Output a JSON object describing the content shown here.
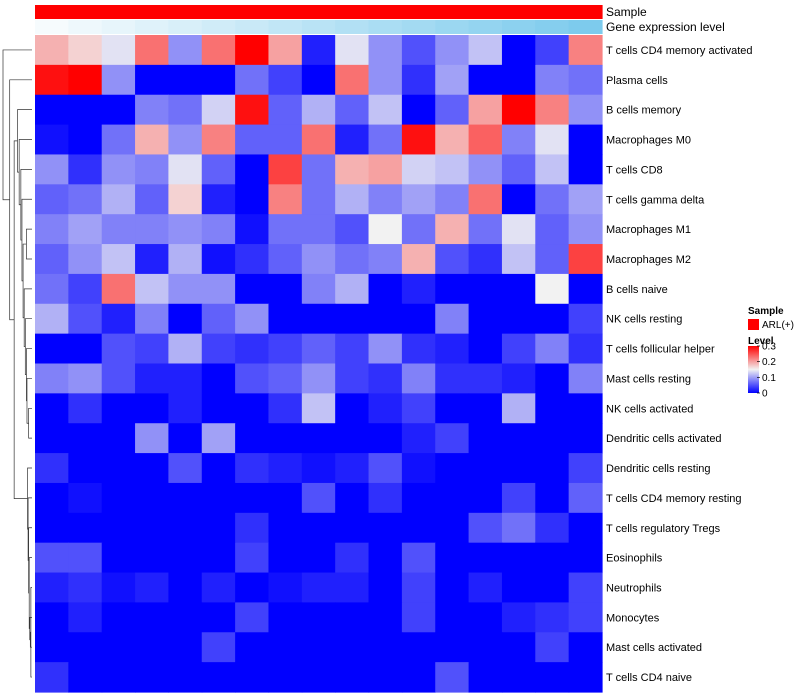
{
  "chart_data": {
    "type": "heatmap",
    "annotation_rows": [
      {
        "label": "Sample",
        "colors": [
          "#ff0000",
          "#ff0000",
          "#ff0000",
          "#ff0000",
          "#ff0000",
          "#ff0000",
          "#ff0000",
          "#ff0000",
          "#ff0000",
          "#ff0000",
          "#ff0000",
          "#ff0000",
          "#ff0000",
          "#ff0000",
          "#ff0000",
          "#ff0000",
          "#ff0000"
        ]
      },
      {
        "label": "Gene expression level",
        "colors": [
          "#f6fbfd",
          "#eef8fc",
          "#e7f5fb",
          "#dff2fa",
          "#d8eff9",
          "#d0ecf8",
          "#c9e9f7",
          "#c1e6f6",
          "#b9e3f5",
          "#b2e0f4",
          "#aaddf3",
          "#a3daf2",
          "#9bd7f1",
          "#94d4f0",
          "#8cd1ef",
          "#85ceee",
          "#7dcbed"
        ]
      }
    ],
    "rows": [
      "T cells CD4 memory activated",
      "Plasma cells",
      "B cells memory",
      "Macrophages M0",
      "T cells CD8",
      "T cells gamma delta",
      "Macrophages M1",
      "Macrophages M2",
      "B cells naive",
      "NK cells resting",
      "T cells follicular helper",
      "Mast cells resting",
      "NK cells activated",
      "Dendritic cells activated",
      "Dendritic cells resting",
      "T cells CD4 memory resting",
      "T cells regulatory  Tregs",
      "Eosinophils",
      "Neutrophils",
      "Monocytes",
      "Mast cells activated",
      "T cells CD4 naive"
    ],
    "values": [
      [
        0.19,
        0.17,
        0.14,
        0.23,
        0.09,
        0.23,
        0.3,
        0.2,
        0.02,
        0.14,
        0.09,
        0.05,
        0.09,
        0.12,
        0.0,
        0.04,
        0.22
      ],
      [
        0.29,
        0.3,
        0.09,
        0.0,
        0.0,
        0.0,
        0.07,
        0.04,
        0.0,
        0.23,
        0.09,
        0.03,
        0.1,
        0.0,
        0.0,
        0.08,
        0.07
      ],
      [
        0.0,
        0.0,
        0.0,
        0.08,
        0.07,
        0.13,
        0.29,
        0.06,
        0.11,
        0.06,
        0.12,
        0.0,
        0.06,
        0.2,
        0.3,
        0.22,
        0.09
      ],
      [
        0.01,
        0.0,
        0.07,
        0.19,
        0.09,
        0.22,
        0.06,
        0.06,
        0.23,
        0.02,
        0.07,
        0.29,
        0.19,
        0.24,
        0.08,
        0.14,
        0.0
      ],
      [
        0.09,
        0.03,
        0.09,
        0.08,
        0.14,
        0.06,
        0.0,
        0.26,
        0.07,
        0.19,
        0.2,
        0.13,
        0.12,
        0.09,
        0.06,
        0.12,
        0.0
      ],
      [
        0.06,
        0.07,
        0.11,
        0.06,
        0.17,
        0.02,
        0.0,
        0.22,
        0.07,
        0.11,
        0.08,
        0.1,
        0.08,
        0.23,
        0.0,
        0.07,
        0.1
      ],
      [
        0.08,
        0.1,
        0.08,
        0.08,
        0.09,
        0.08,
        0.01,
        0.07,
        0.07,
        0.05,
        0.15,
        0.07,
        0.19,
        0.07,
        0.14,
        0.06,
        0.09
      ],
      [
        0.06,
        0.09,
        0.12,
        0.02,
        0.11,
        0.01,
        0.03,
        0.06,
        0.09,
        0.07,
        0.08,
        0.19,
        0.05,
        0.03,
        0.12,
        0.06,
        0.26
      ],
      [
        0.07,
        0.04,
        0.23,
        0.12,
        0.09,
        0.09,
        0.0,
        0.0,
        0.08,
        0.11,
        0.0,
        0.02,
        0.0,
        0.0,
        0.0,
        0.15,
        0.0
      ],
      [
        0.11,
        0.05,
        0.02,
        0.08,
        0.0,
        0.06,
        0.09,
        0.0,
        0.0,
        0.0,
        0.0,
        0.0,
        0.08,
        0.0,
        0.0,
        0.0,
        0.04
      ],
      [
        0.0,
        0.0,
        0.05,
        0.04,
        0.11,
        0.04,
        0.03,
        0.04,
        0.06,
        0.04,
        0.09,
        0.03,
        0.02,
        0.0,
        0.04,
        0.08,
        0.03
      ],
      [
        0.08,
        0.09,
        0.05,
        0.02,
        0.02,
        0.0,
        0.05,
        0.06,
        0.09,
        0.04,
        0.03,
        0.08,
        0.03,
        0.03,
        0.02,
        0.0,
        0.08
      ],
      [
        0.0,
        0.03,
        0.0,
        0.0,
        0.02,
        0.0,
        0.0,
        0.03,
        0.12,
        0.0,
        0.02,
        0.04,
        0.0,
        0.0,
        0.11,
        0.0,
        0.0
      ],
      [
        0.0,
        0.0,
        0.0,
        0.09,
        0.0,
        0.1,
        0.0,
        0.0,
        0.0,
        0.0,
        0.0,
        0.02,
        0.04,
        0.0,
        0.0,
        0.0,
        0.0
      ],
      [
        0.03,
        0.0,
        0.0,
        0.0,
        0.05,
        0.0,
        0.03,
        0.02,
        0.01,
        0.02,
        0.05,
        0.01,
        0.0,
        0.0,
        0.0,
        0.0,
        0.04
      ],
      [
        0.0,
        0.01,
        0.0,
        0.0,
        0.0,
        0.0,
        0.0,
        0.0,
        0.05,
        0.0,
        0.03,
        0.0,
        0.0,
        0.0,
        0.04,
        0.0,
        0.06
      ],
      [
        0.0,
        0.0,
        0.0,
        0.0,
        0.0,
        0.0,
        0.03,
        0.0,
        0.0,
        0.0,
        0.0,
        0.0,
        0.0,
        0.05,
        0.07,
        0.03,
        0.0
      ],
      [
        0.05,
        0.05,
        0.0,
        0.0,
        0.0,
        0.0,
        0.04,
        0.0,
        0.0,
        0.03,
        0.0,
        0.05,
        0.0,
        0.0,
        0.0,
        0.0,
        0.0
      ],
      [
        0.02,
        0.03,
        0.01,
        0.02,
        0.0,
        0.02,
        0.0,
        0.01,
        0.02,
        0.02,
        0.0,
        0.04,
        0.0,
        0.02,
        0.0,
        0.0,
        0.04
      ],
      [
        0.0,
        0.02,
        0.0,
        0.0,
        0.0,
        0.0,
        0.04,
        0.0,
        0.0,
        0.0,
        0.0,
        0.04,
        0.0,
        0.0,
        0.02,
        0.03,
        0.04
      ],
      [
        0.0,
        0.0,
        0.0,
        0.0,
        0.0,
        0.04,
        0.0,
        0.0,
        0.0,
        0.0,
        0.0,
        0.0,
        0.0,
        0.0,
        0.0,
        0.04,
        0.0
      ],
      [
        0.03,
        0.0,
        0.0,
        0.0,
        0.0,
        0.0,
        0.0,
        0.0,
        0.0,
        0.0,
        0.0,
        0.0,
        0.05,
        0.0,
        0.0,
        0.0,
        0.0
      ]
    ],
    "dendrogram": {
      "type": "hierarchical clustering of rows",
      "merges": [
        [
          -19,
          -22
        ],
        [
          -21,
          1
        ],
        [
          -20,
          2
        ],
        [
          -18,
          3
        ],
        [
          -17,
          4
        ],
        [
          -16,
          5
        ],
        [
          -15,
          6
        ],
        [
          -13,
          -14
        ],
        [
          -12,
          8
        ],
        [
          -11,
          9
        ],
        [
          -10,
          10
        ],
        [
          -9,
          11
        ],
        [
          -8,
          -7
        ],
        [
          13,
          12
        ],
        [
          -6,
          14
        ],
        [
          -5,
          15
        ],
        [
          -4,
          16
        ],
        [
          -3,
          17
        ],
        [
          7,
          18
        ],
        [
          -2,
          19
        ],
        [
          -1,
          20
        ]
      ],
      "heights": [
        0.01,
        0.015,
        0.02,
        0.025,
        0.03,
        0.035,
        0.04,
        0.03,
        0.045,
        0.05,
        0.06,
        0.07,
        0.05,
        0.08,
        0.09,
        0.1,
        0.115,
        0.13,
        0.16,
        0.2,
        0.26
      ]
    },
    "legends": {
      "sample": {
        "title": "Sample",
        "items": [
          {
            "label": "ARL(+)",
            "color": "#ff0000"
          }
        ]
      },
      "level": {
        "title": "Level",
        "ticks": [
          "0.3",
          "0.2",
          "0.1",
          "0"
        ],
        "tick_values": [
          0.3,
          0.2,
          0.1,
          0
        ],
        "range": [
          0,
          0.3
        ],
        "colors": {
          "low": "#0000ff",
          "mid": "#f2f2f2",
          "high": "#ff0000",
          "mid_value": 0.15
        }
      }
    }
  }
}
